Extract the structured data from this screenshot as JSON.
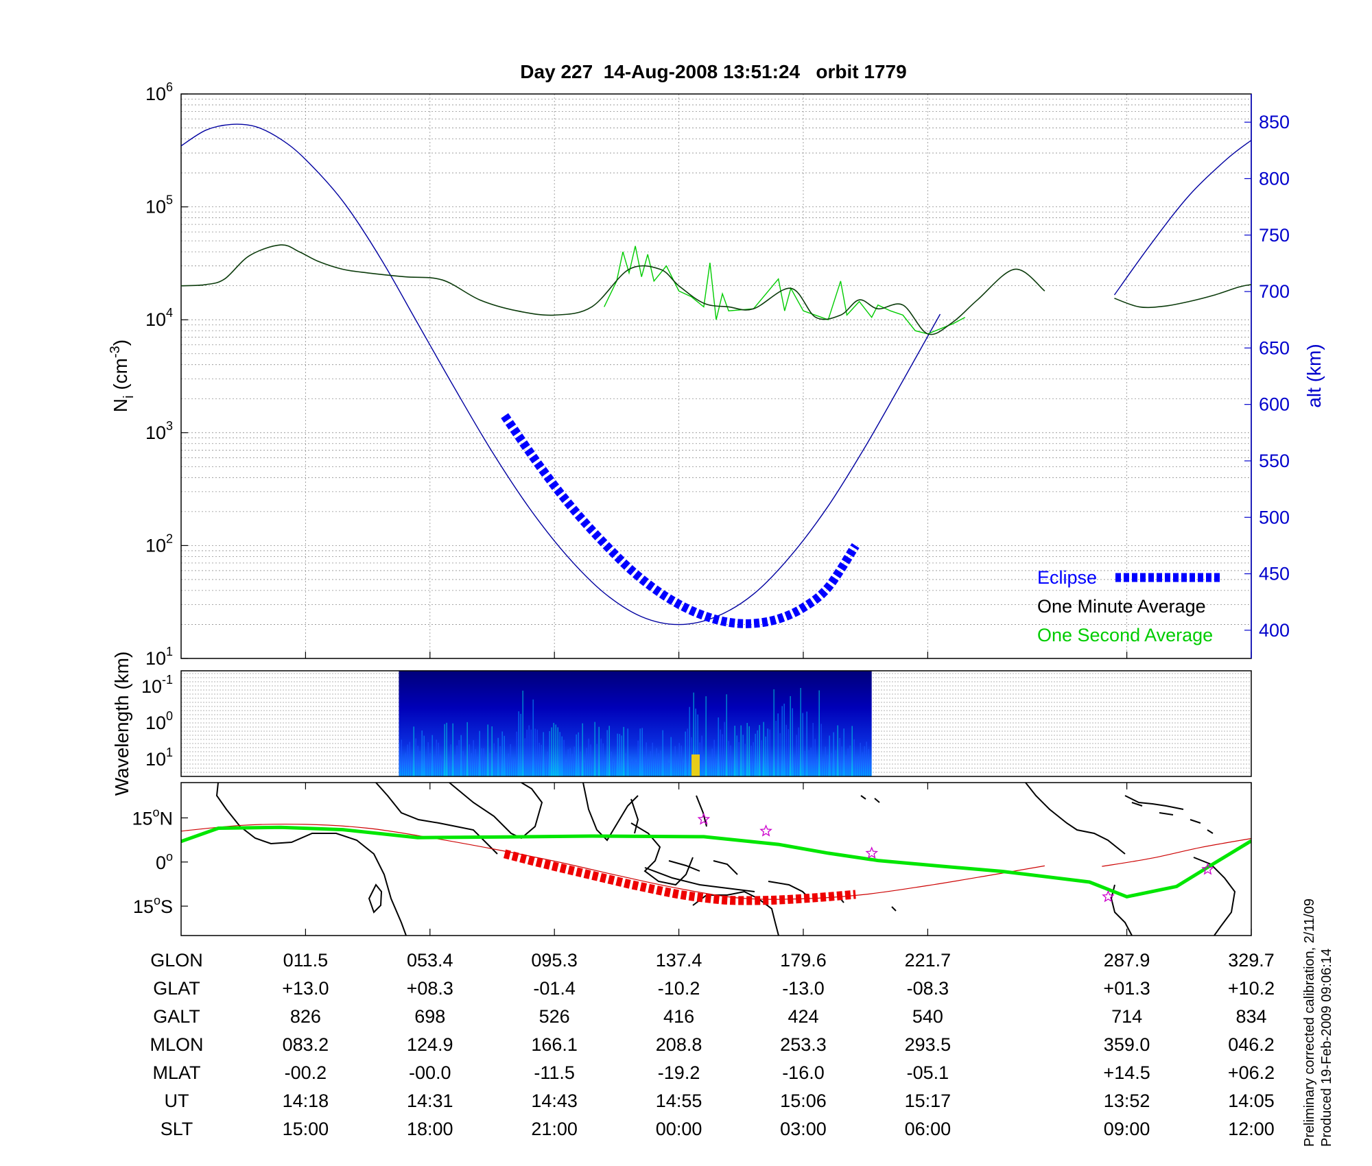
{
  "title": "Day 227  14-Aug-2008 13:51:24   orbit 1779",
  "footnote": {
    "line1": "Preliminary corrected calibration, 2/11/09",
    "line2": "Produced 19-Feb-2009 09:06:14"
  },
  "chart_data": [
    {
      "type": "line",
      "name": "density-altitude",
      "y_left": {
        "label_base": "N",
        "label_sub": "i",
        "label_unit_open": " (cm",
        "label_unit_sup": "-3",
        "label_unit_close": ")",
        "scale": "log",
        "range": [
          10,
          1000000
        ],
        "ticks": [
          {
            "base": "10",
            "exp": "1"
          },
          {
            "base": "10",
            "exp": "2"
          },
          {
            "base": "10",
            "exp": "3"
          },
          {
            "base": "10",
            "exp": "4"
          },
          {
            "base": "10",
            "exp": "5"
          },
          {
            "base": "10",
            "exp": "6"
          }
        ]
      },
      "y_right": {
        "label": "alt (km)",
        "range": [
          375,
          875
        ],
        "ticks": [
          "400",
          "450",
          "500",
          "550",
          "600",
          "650",
          "700",
          "750",
          "800",
          "850"
        ]
      },
      "grid": true,
      "legend": {
        "placement": "bottom-right",
        "entries": [
          "Eclipse",
          "One Minute Average",
          "One Second Average"
        ]
      },
      "colors": {
        "altitude": "#0000a0",
        "eclipse": "#0000ff",
        "minute": "#000000",
        "second": "#00cc00"
      },
      "x_range": [
        0,
        8.6
      ],
      "altitude": {
        "x": [
          0,
          0.2,
          0.4,
          0.6,
          0.8,
          1.0,
          1.3,
          1.6,
          1.9,
          2.2,
          2.5,
          2.8,
          3.1,
          3.4,
          3.7,
          4.0,
          4.3,
          4.6,
          4.9,
          5.2,
          5.5,
          5.8,
          6.1,
          6.4,
          6.7,
          6.94
        ],
        "y": [
          829,
          843,
          848,
          846,
          835,
          817,
          780,
          730,
          672,
          614,
          558,
          508,
          466,
          433,
          412,
          405,
          412,
          432,
          466,
          510,
          563,
          621,
          680,
          null,
          null,
          null
        ]
      },
      "altitude_seg2": {
        "x": [
          7.5,
          7.8,
          8.1,
          8.4,
          8.6
        ],
        "y": [
          697,
          743,
          785,
          817,
          834
        ]
      },
      "eclipse": {
        "x": [
          2.6,
          2.8,
          3.0,
          3.2,
          3.4,
          3.6,
          3.8,
          4.0,
          4.2,
          4.4,
          4.6,
          4.8,
          5.0,
          5.2,
          5.42
        ],
        "y": [
          590,
          558,
          528,
          501,
          477,
          455,
          437,
          423,
          413,
          407,
          406,
          410,
          420,
          438,
          475
        ]
      },
      "one_minute_average": {
        "x": [
          0,
          0.2,
          0.35,
          0.55,
          0.8,
          0.95,
          1.1,
          1.3,
          1.5,
          1.8,
          2.1,
          2.4,
          2.7,
          3.0,
          3.3,
          3.6,
          3.85,
          4.0,
          4.2,
          4.4,
          4.6,
          4.9,
          5.1,
          5.3,
          5.45,
          5.6,
          5.8,
          6.0,
          6.2,
          6.4,
          6.7,
          6.94
        ],
        "y": [
          20000,
          20500,
          23000,
          37000,
          46000,
          40000,
          33000,
          28000,
          26000,
          24000,
          22500,
          15000,
          12000,
          11000,
          13000,
          28000,
          28000,
          20000,
          14000,
          13000,
          12500,
          19000,
          10500,
          11000,
          15000,
          12500,
          13500,
          7500,
          9500,
          15000,
          28000,
          18000
        ]
      },
      "one_minute_average_seg2": {
        "x": [
          7.5,
          7.7,
          7.9,
          8.1,
          8.3,
          8.5,
          8.6
        ],
        "y": [
          15500,
          13000,
          13200,
          14500,
          16500,
          19500,
          20500
        ]
      },
      "one_second_average": {
        "x": [
          3.4,
          3.5,
          3.55,
          3.6,
          3.65,
          3.7,
          3.75,
          3.8,
          3.9,
          4.0,
          4.1,
          4.2,
          4.25,
          4.3,
          4.35,
          4.4,
          4.6,
          4.8,
          4.85,
          4.9,
          5.0,
          5.2,
          5.3,
          5.35,
          5.45,
          5.55,
          5.6,
          5.7,
          5.8,
          5.9,
          6.0,
          6.2,
          6.3
        ],
        "y": [
          13000,
          22000,
          40000,
          26000,
          45000,
          24000,
          38000,
          22000,
          30000,
          18000,
          16000,
          13000,
          32000,
          10000,
          17000,
          12000,
          12500,
          23000,
          12000,
          19000,
          12000,
          10000,
          22000,
          11000,
          14500,
          10500,
          13500,
          12000,
          11000,
          8000,
          7500,
          9200,
          10500
        ]
      }
    },
    {
      "type": "heatmap",
      "name": "wavelength-spectrogram",
      "ylabel": "Wavelength (km)",
      "ticks": [
        {
          "base": "10",
          "exp": "-1"
        },
        {
          "base": "10",
          "exp": "0"
        },
        {
          "base": "10",
          "exp": "1"
        }
      ],
      "x_range": [
        1.75,
        5.55
      ],
      "colormap": "jet"
    },
    {
      "type": "line",
      "name": "ground-track-map",
      "y_ticks": [
        {
          "num": "15",
          "deg": "o",
          "hem": "N",
          "lat": 15
        },
        {
          "num": "0",
          "deg": "o",
          "hem": "",
          "lat": 0
        },
        {
          "num": "15",
          "deg": "o",
          "hem": "S",
          "lat": -15
        }
      ],
      "lat_range": [
        -25,
        27
      ],
      "green_track": {
        "x": [
          0,
          0.3,
          0.8,
          1.3,
          1.9,
          2.6,
          3.3,
          4.2,
          4.8,
          5.2,
          5.6,
          6.1,
          6.6,
          7.3,
          7.6,
          8.0,
          8.3,
          8.6
        ],
        "lat": [
          7,
          11.5,
          11.8,
          11,
          8.3,
          8.5,
          8.8,
          8.6,
          6,
          3,
          0.5,
          -1.4,
          -3.2,
          -6.8,
          -11.8,
          -8.3,
          -0.5,
          7.2
        ]
      },
      "red_track": {
        "x": [
          0,
          0.5,
          1.0,
          1.5,
          2.0,
          2.5,
          3.0,
          3.5,
          4.0,
          4.5,
          5.0,
          5.5,
          6.0,
          6.5,
          6.94
        ],
        "lat": [
          10.5,
          12.5,
          12.8,
          11.5,
          8.3,
          4.5,
          0.3,
          -4.5,
          -9,
          -12.3,
          -12.5,
          -11,
          -8,
          -4.5,
          -1.3
        ]
      },
      "red_track_seg2": {
        "x": [
          7.4,
          7.8,
          8.2,
          8.6
        ],
        "lat": [
          -1.5,
          1.3,
          5,
          8
        ]
      },
      "red_eclipse": {
        "x": [
          2.6,
          2.8,
          3.0,
          3.2,
          3.4,
          3.6,
          3.8,
          4.0,
          4.2,
          4.4,
          4.6,
          4.8,
          5.0,
          5.2,
          5.42
        ],
        "lat": [
          2.8,
          0.6,
          -1.5,
          -3.5,
          -5.5,
          -7.5,
          -9.3,
          -11,
          -12.2,
          -13,
          -13.1,
          -12.9,
          -12.4,
          -11.8,
          -11
        ]
      },
      "stars": {
        "x": [
          4.2,
          4.7,
          5.55,
          7.45,
          8.25
        ],
        "lat": [
          14.5,
          10.5,
          3,
          -11.8,
          -2.5
        ]
      },
      "colors": {
        "green": "#00e600",
        "red": "#cc0000",
        "stars": "#cc00cc"
      }
    }
  ],
  "table": {
    "row_labels": [
      "GLON",
      "GLAT",
      "GALT",
      "MLON",
      "MLAT",
      "UT",
      "SLT"
    ],
    "column_x": [
      1,
      2,
      3,
      4,
      5,
      6,
      7.6,
      8.6
    ],
    "rows": [
      [
        "011.5",
        "053.4",
        "095.3",
        "137.4",
        "179.6",
        "221.7",
        "287.9",
        "329.7"
      ],
      [
        "+13.0",
        "+08.3",
        "-01.4",
        "-10.2",
        "-13.0",
        "-08.3",
        "+01.3",
        "+10.2"
      ],
      [
        "826",
        "698",
        "526",
        "416",
        "424",
        "540",
        "714",
        "834"
      ],
      [
        "083.2",
        "124.9",
        "166.1",
        "208.8",
        "253.3",
        "293.5",
        "359.0",
        "046.2"
      ],
      [
        "-00.2",
        "-00.0",
        "-11.5",
        "-19.2",
        "-16.0",
        "-05.1",
        "+14.5",
        "+06.2"
      ],
      [
        "14:18",
        "14:31",
        "14:43",
        "14:55",
        "15:06",
        "15:17",
        "13:52",
        "14:05"
      ],
      [
        "15:00",
        "18:00",
        "21:00",
        "00:00",
        "03:00",
        "06:00",
        "09:00",
        "12:00"
      ]
    ]
  }
}
